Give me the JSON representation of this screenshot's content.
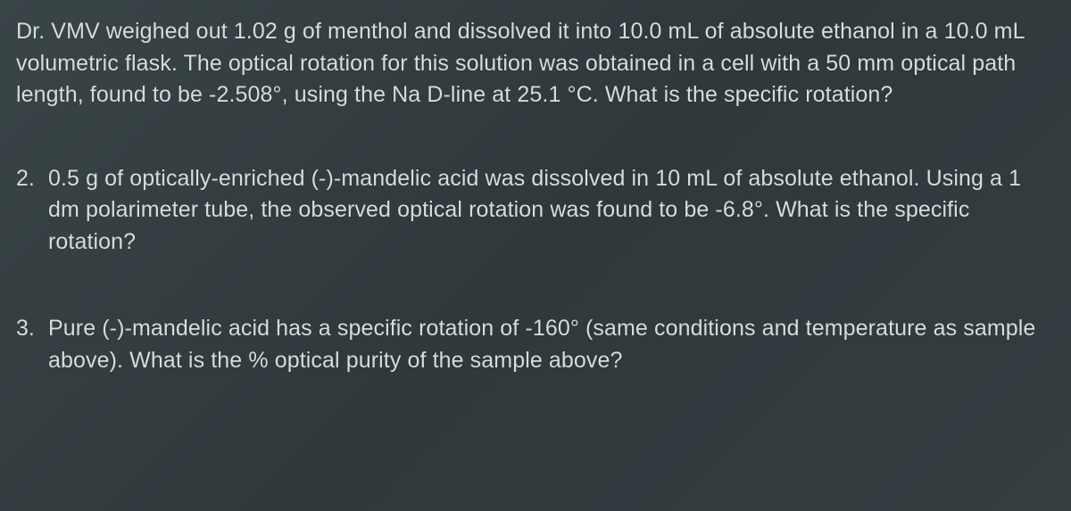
{
  "typography": {
    "font_family": "Arial, Helvetica, sans-serif",
    "font_size_pt": 19,
    "line_height": 1.42,
    "text_color": "#d8dcdd"
  },
  "background": {
    "gradient_start": "#3a4548",
    "gradient_mid": "#2f383b",
    "gradient_end": "#343e41"
  },
  "q1": {
    "text": "Dr. VMV weighed out 1.02 g of menthol and dissolved it into 10.0 mL of absolute ethanol in a 10.0 mL volumetric flask. The optical rotation for this solution was obtained in a cell with a 50 mm optical path length, found to be -2.508°, using the Na D-line at 25.1 °C. What is the specific rotation?"
  },
  "q2": {
    "number": "2.",
    "text": "0.5 g of optically-enriched (-)-mandelic acid was dissolved in 10 mL of absolute ethanol. Using a 1 dm polarimeter tube, the observed optical rotation was found to be -6.8°. What is the specific rotation?"
  },
  "q3": {
    "number": "3.",
    "text": "Pure (-)-mandelic acid has a specific rotation of -160° (same conditions and temperature as sample above). What is the % optical purity of the sample above?"
  }
}
